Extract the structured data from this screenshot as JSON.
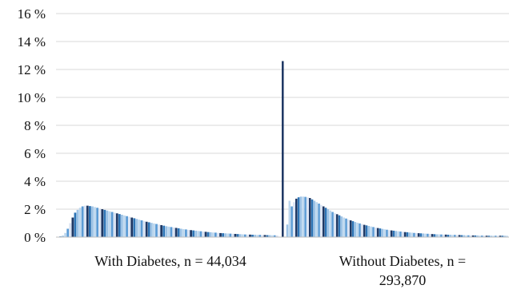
{
  "chart_data": {
    "type": "bar",
    "y_ticks": [
      "0 %",
      "2 %",
      "4 %",
      "6 %",
      "8 %",
      "10 %",
      "12 %",
      "14 %",
      "16 %"
    ],
    "ylim": [
      0,
      16
    ],
    "grid": true,
    "category_labels": [
      [
        "With Diabetes, n = 44,034"
      ],
      [
        "Without Diabetes, n =",
        "293,870"
      ]
    ],
    "palette": [
      "#1f3864",
      "#2e75b6",
      "#9dc3e6",
      "#bdd7ee",
      "#5b9bd5",
      "#dae3f3"
    ],
    "series": [
      {
        "values": [
          0.02,
          0.05,
          0.1,
          0.3,
          0.6,
          1.0,
          1.4,
          1.75,
          1.95,
          2.1,
          2.2,
          2.25,
          2.25,
          2.22,
          2.2,
          2.15,
          2.1,
          2.05,
          2.0,
          1.95,
          1.9,
          1.85,
          1.8,
          1.75,
          1.7,
          1.65,
          1.6,
          1.55,
          1.5,
          1.45,
          1.4,
          1.35,
          1.3,
          1.25,
          1.2,
          1.15,
          1.1,
          1.06,
          1.02,
          0.98,
          0.94,
          0.9,
          0.86,
          0.82,
          0.78,
          0.75,
          0.72,
          0.69,
          0.66,
          0.63,
          0.6,
          0.57,
          0.55,
          0.52,
          0.5,
          0.48,
          0.46,
          0.44,
          0.42,
          0.4,
          0.38,
          0.36,
          0.35,
          0.33,
          0.32,
          0.3,
          0.29,
          0.28,
          0.27,
          0.26,
          0.25,
          0.24,
          0.23,
          0.22,
          0.21,
          0.2,
          0.19,
          0.18,
          0.18,
          0.17,
          0.17,
          0.16,
          0.16,
          0.15,
          0.15,
          0.14,
          0.14,
          0.13,
          0.13,
          0.12
        ]
      },
      {
        "values": [
          12.6,
          0.0,
          0.9,
          2.6,
          2.2,
          2.5,
          2.75,
          2.85,
          2.9,
          2.9,
          2.88,
          2.85,
          2.8,
          2.7,
          2.6,
          2.5,
          2.4,
          2.3,
          2.2,
          2.1,
          2.0,
          1.9,
          1.8,
          1.72,
          1.64,
          1.56,
          1.48,
          1.4,
          1.33,
          1.26,
          1.2,
          1.14,
          1.08,
          1.03,
          0.98,
          0.93,
          0.88,
          0.84,
          0.8,
          0.76,
          0.72,
          0.68,
          0.65,
          0.62,
          0.59,
          0.56,
          0.53,
          0.5,
          0.48,
          0.46,
          0.44,
          0.42,
          0.4,
          0.38,
          0.36,
          0.35,
          0.33,
          0.32,
          0.3,
          0.29,
          0.28,
          0.27,
          0.26,
          0.25,
          0.24,
          0.23,
          0.22,
          0.21,
          0.2,
          0.2,
          0.19,
          0.18,
          0.18,
          0.17,
          0.17,
          0.16,
          0.16,
          0.15,
          0.15,
          0.14,
          0.14,
          0.13,
          0.13,
          0.13,
          0.12,
          0.12,
          0.12,
          0.11,
          0.11,
          0.11,
          0.1,
          0.1,
          0.1,
          0.1,
          0.1,
          0.1,
          0.1,
          0.1,
          0.1,
          0.1
        ]
      }
    ]
  }
}
